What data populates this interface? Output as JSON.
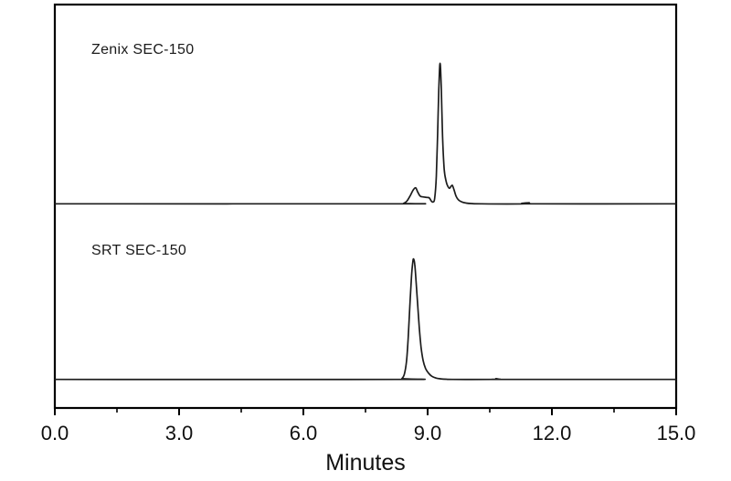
{
  "figure": {
    "background": "#ffffff",
    "frame_color": "#000000",
    "trace_color": "#1c1c1c",
    "text_color": "#111111"
  },
  "chart_data": {
    "type": "line",
    "title": "",
    "xlabel": "Minutes",
    "ylabel": "",
    "x_range": [
      0.0,
      15.0
    ],
    "grid": false,
    "legend_position": "in-panel labels",
    "x_major_ticks": [
      0.0,
      3.0,
      6.0,
      9.0,
      12.0,
      15.0
    ],
    "x_tick_labels": [
      "0.0",
      "3.0",
      "6.0",
      "9.0",
      "12.0",
      "15.0"
    ],
    "x_minor_ticks": [
      1.5,
      4.5,
      7.5,
      10.5,
      13.5
    ],
    "series": [
      {
        "name": "Zenix SEC-150",
        "panel": "top",
        "main_peak_apex_min": 9.3,
        "pre_peak_apex_min": 8.71,
        "shoulder_peak_min": 9.6,
        "points": [
          [
            0.0,
            0
          ],
          [
            8.3,
            0
          ],
          [
            8.42,
            0.5
          ],
          [
            8.5,
            3
          ],
          [
            8.58,
            9
          ],
          [
            8.65,
            15
          ],
          [
            8.71,
            17.5
          ],
          [
            8.76,
            13
          ],
          [
            8.82,
            8.5
          ],
          [
            8.9,
            7.5
          ],
          [
            8.98,
            7
          ],
          [
            9.04,
            6.5
          ],
          [
            9.09,
            3
          ],
          [
            9.13,
            2
          ],
          [
            9.17,
            6
          ],
          [
            9.21,
            30
          ],
          [
            9.24,
            75
          ],
          [
            9.27,
            125
          ],
          [
            9.3,
            154
          ],
          [
            9.33,
            125
          ],
          [
            9.36,
            75
          ],
          [
            9.4,
            38
          ],
          [
            9.45,
            24
          ],
          [
            9.49,
            19
          ],
          [
            9.53,
            17
          ],
          [
            9.57,
            19.5
          ],
          [
            9.6,
            20
          ],
          [
            9.64,
            15
          ],
          [
            9.69,
            8
          ],
          [
            9.75,
            4
          ],
          [
            9.83,
            2
          ],
          [
            9.93,
            0.8
          ],
          [
            10.05,
            0.3
          ],
          [
            10.3,
            0
          ],
          [
            11.35,
            0
          ],
          [
            11.45,
            1.2
          ],
          [
            11.55,
            0
          ],
          [
            15.0,
            0
          ]
        ]
      },
      {
        "name": "SRT SEC-150",
        "panel": "bottom",
        "main_peak_apex_min": 8.66,
        "points": [
          [
            0.0,
            0
          ],
          [
            8.3,
            0
          ],
          [
            8.38,
            1
          ],
          [
            8.44,
            6
          ],
          [
            8.49,
            20
          ],
          [
            8.53,
            45
          ],
          [
            8.57,
            80
          ],
          [
            8.61,
            112
          ],
          [
            8.64,
            128
          ],
          [
            8.66,
            132
          ],
          [
            8.69,
            126
          ],
          [
            8.72,
            108
          ],
          [
            8.76,
            82
          ],
          [
            8.8,
            56
          ],
          [
            8.84,
            36
          ],
          [
            8.89,
            21
          ],
          [
            8.95,
            12
          ],
          [
            9.02,
            7
          ],
          [
            9.1,
            3.5
          ],
          [
            9.2,
            1.5
          ],
          [
            9.32,
            0.6
          ],
          [
            9.45,
            0.2
          ],
          [
            9.6,
            0
          ],
          [
            10.55,
            0
          ],
          [
            10.65,
            0.8
          ],
          [
            10.75,
            0.2
          ],
          [
            10.9,
            0
          ],
          [
            15.0,
            0
          ]
        ]
      }
    ]
  }
}
